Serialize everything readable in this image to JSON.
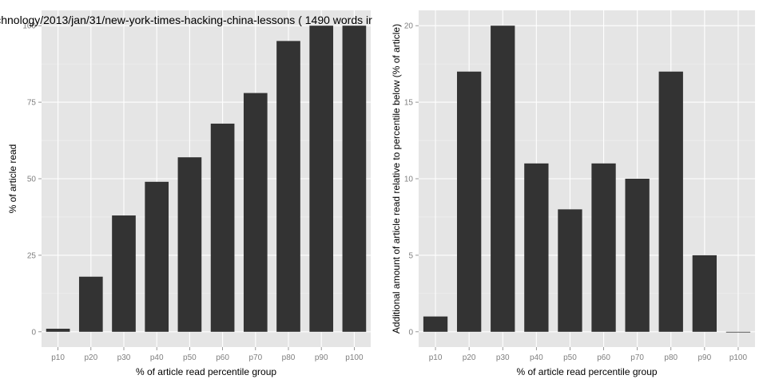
{
  "colors": {
    "bar_fill": "#333333",
    "panel_background": "#e5e5e5",
    "grid_major": "#ffffff",
    "grid_minor": "#f2f2f2",
    "tick_text": "#7f7f7f",
    "page_background": "#ffffff"
  },
  "chart_data": [
    {
      "type": "bar",
      "title": "chnology/2013/jan/31/new-york-times-hacking-china-lessons ( 1490 words ir",
      "xlabel": "% of article read percentile group",
      "ylabel": "% of article read",
      "categories": [
        "p10",
        "p20",
        "p30",
        "p40",
        "p50",
        "p60",
        "p70",
        "p80",
        "p90",
        "p100"
      ],
      "values": [
        1,
        18,
        38,
        49,
        57,
        68,
        78,
        95,
        100,
        100
      ],
      "ylim": [
        -5,
        105
      ],
      "yticks": [
        0,
        25,
        50,
        75,
        100
      ],
      "ytick_labels": [
        "0",
        "25",
        "50",
        "75",
        "100"
      ],
      "grid": true,
      "legend": "none"
    },
    {
      "type": "bar",
      "title": "",
      "xlabel": "% of article read percentile group",
      "ylabel": "Additional amount of article read relative to percentile below (% of article)",
      "categories": [
        "p10",
        "p20",
        "p30",
        "p40",
        "p50",
        "p60",
        "p70",
        "p80",
        "p90",
        "p100"
      ],
      "values": [
        1,
        17,
        20,
        11,
        8,
        11,
        10,
        17,
        5,
        0
      ],
      "ylim": [
        -1,
        21
      ],
      "yticks": [
        0,
        5,
        10,
        15,
        20
      ],
      "ytick_labels": [
        "0",
        "5",
        "10",
        "15",
        "20"
      ],
      "grid": true,
      "legend": "none"
    }
  ]
}
